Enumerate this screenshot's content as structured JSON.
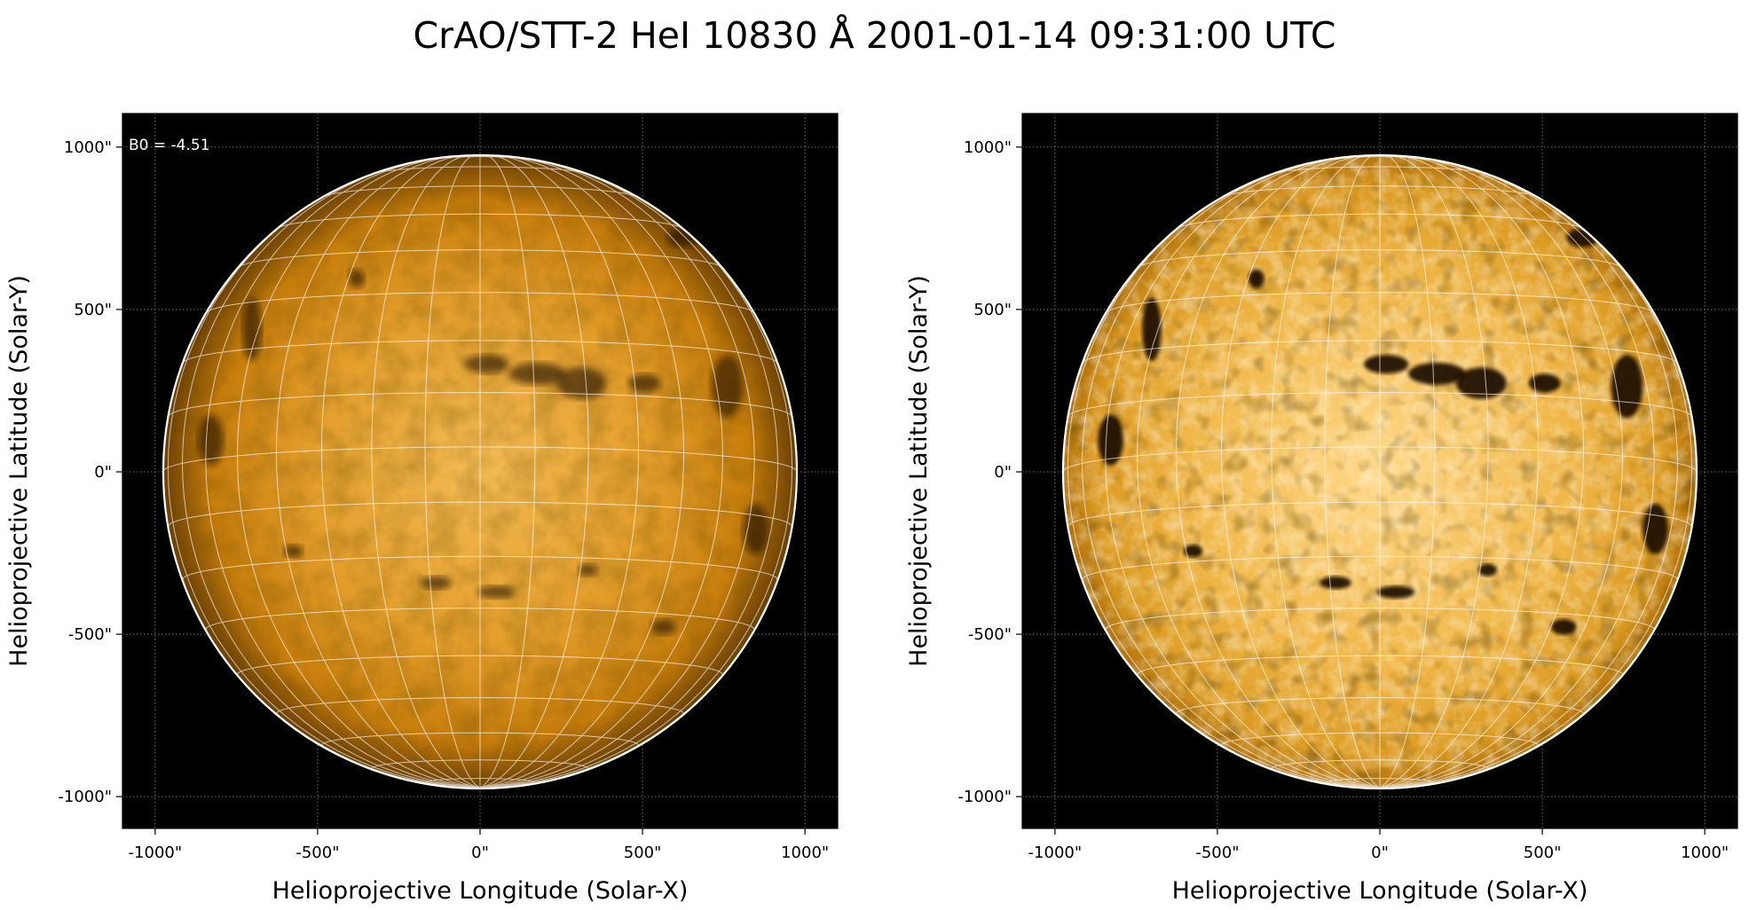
{
  "figure": {
    "title": "CrAO/STT-2 HeI 10830 Å 2001-01-14 09:31:00 UTC"
  },
  "panels": [
    {
      "id": "left",
      "annotation": "B0 = -4.51",
      "xlabel": "Helioprojective Longitude (Solar-X)",
      "ylabel": "Helioprojective Latitude (Solar-Y)",
      "x_ticks": [
        "-1000\"",
        "-500\"",
        "0\"",
        "500\"",
        "1000\""
      ],
      "y_ticks": [
        "1000\"",
        "500\"",
        "0\"",
        "-500\"",
        "-1000\""
      ],
      "colormap": "he-10830-standard"
    },
    {
      "id": "right",
      "annotation": "",
      "xlabel": "Helioprojective Longitude (Solar-X)",
      "ylabel": "Helioprojective Latitude (Solar-Y)",
      "x_ticks": [
        "-1000\"",
        "-500\"",
        "0\"",
        "500\"",
        "1000\""
      ],
      "y_ticks": [
        "1000\"",
        "500\"",
        "0\"",
        "-500\"",
        "-1000\""
      ],
      "colormap": "he-10830-enhanced-contrast"
    }
  ],
  "colors": {
    "background": "#000000",
    "disk_bright": "#f0b650",
    "disk_mid": "#d88a0c",
    "disk_limb": "#7a4a05",
    "enhanced_bright": "#ffe9b0",
    "enhanced_mid": "#d99a20",
    "grid": "#ffffff",
    "dark_feature": "#1a1000"
  }
}
